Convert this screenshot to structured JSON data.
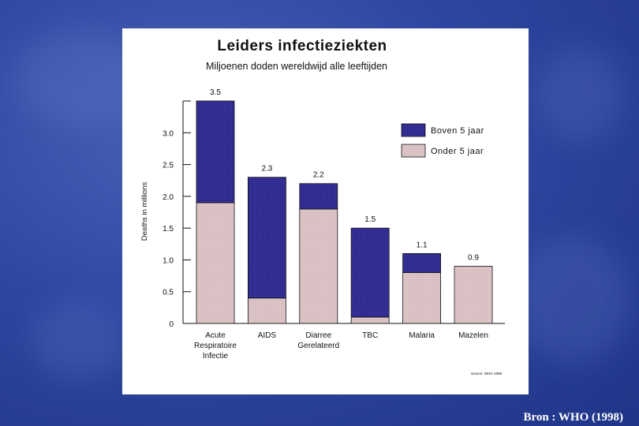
{
  "colors": {
    "above5": "#2e2a8e",
    "under5": "#d9c0c2",
    "background": "#2f47a0"
  },
  "footer": {
    "source": "Bron : WHO (1998)"
  },
  "chart_data": {
    "type": "bar",
    "stacked": true,
    "title": "Leiders infectieziekten",
    "subtitle": "Miljoenen doden wereldwijd alle leeftijden",
    "ylabel": "Deaths in millions",
    "xlabel": "",
    "ylim": [
      0,
      3.5
    ],
    "yticks": [
      "0",
      "0.5",
      "1.0",
      "1.5",
      "2.0",
      "2.5",
      "3.0"
    ],
    "categories": [
      [
        "Acute",
        "Respiratoire",
        "Infectie"
      ],
      [
        "AIDS"
      ],
      [
        "Diarree",
        "Gerelateerd"
      ],
      [
        "TBC"
      ],
      [
        "Malaria"
      ],
      [
        "Mazelen"
      ]
    ],
    "totals": [
      "3.5",
      "2.3",
      "2.2",
      "1.5",
      "1.1",
      "0.9"
    ],
    "series": [
      {
        "name": "Onder 5 jaar",
        "values": [
          1.9,
          0.4,
          1.8,
          0.1,
          0.8,
          0.9
        ]
      },
      {
        "name": "Boven 5 jaar",
        "values": [
          1.6,
          1.9,
          0.4,
          1.4,
          0.3,
          0.0
        ]
      }
    ],
    "legend": [
      "Boven 5 jaar",
      "Onder 5 jaar"
    ],
    "legend_position": "top-right",
    "source_note": "Source: WHO 1999"
  }
}
